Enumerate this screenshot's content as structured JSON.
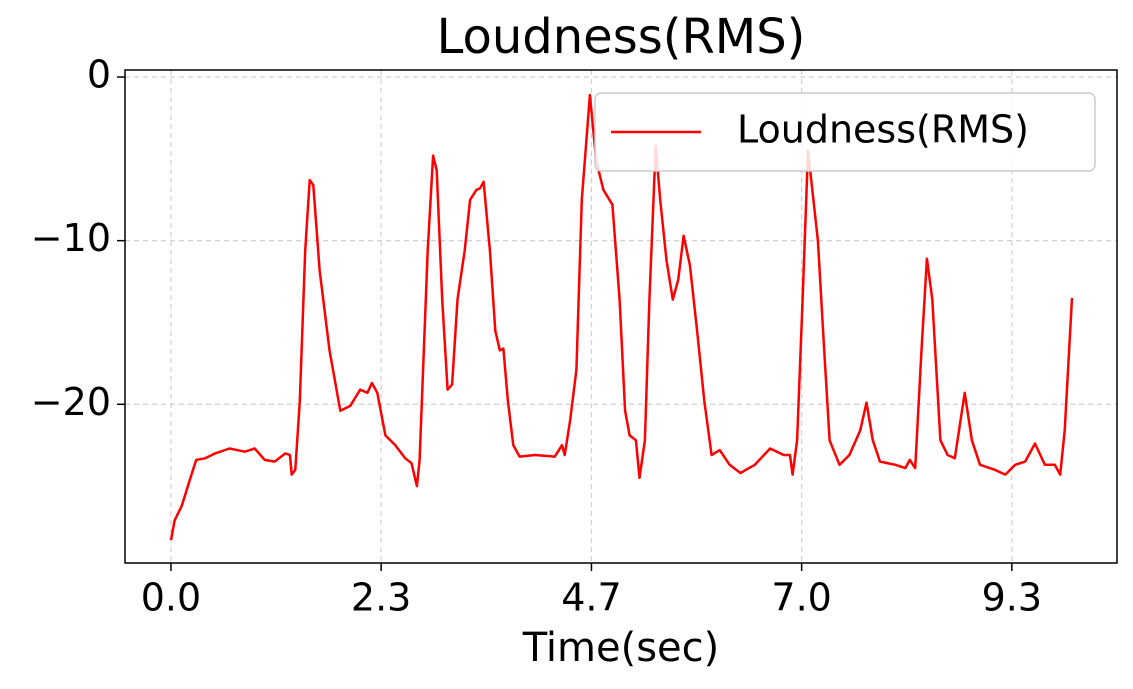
{
  "chart_data": {
    "type": "line",
    "title": "Loudness(RMS)",
    "xlabel": "Time(sec)",
    "x": [
      0,
      0.04,
      0.12,
      0.21,
      0.28,
      0.38,
      0.49,
      0.65,
      0.82,
      0.93,
      1.04,
      1.15,
      1.27,
      1.32,
      1.34,
      1.38,
      1.43,
      1.49,
      1.54,
      1.58,
      1.65,
      1.76,
      1.88,
      1.99,
      2.1,
      2.18,
      2.23,
      2.29,
      2.38,
      2.49,
      2.6,
      2.67,
      2.73,
      2.76,
      2.85,
      2.91,
      2.95,
      3.01,
      3.07,
      3.12,
      3.18,
      3.26,
      3.32,
      3.39,
      3.43,
      3.47,
      3.54,
      3.6,
      3.65,
      3.69,
      3.74,
      3.8,
      3.87,
      4.04,
      4.26,
      4.34,
      4.37,
      4.43,
      4.5,
      4.56,
      4.65,
      4.72,
      4.8,
      4.9,
      4.98,
      5.04,
      5.09,
      5.16,
      5.2,
      5.26,
      5.31,
      5.38,
      5.43,
      5.5,
      5.57,
      5.63,
      5.69,
      5.76,
      5.84,
      5.92,
      6.0,
      6.09,
      6.2,
      6.32,
      6.48,
      6.65,
      6.8,
      6.87,
      6.9,
      6.95,
      7.01,
      7.07,
      7.13,
      7.18,
      7.25,
      7.31,
      7.42,
      7.53,
      7.65,
      7.72,
      7.79,
      7.87,
      8.04,
      8.15,
      8.2,
      8.26,
      8.33,
      8.39,
      8.45,
      8.54,
      8.62,
      8.7,
      8.81,
      8.89,
      8.98,
      9.14,
      9.26,
      9.37,
      9.48,
      9.59,
      9.7,
      9.81,
      9.87,
      9.92,
      10.0
    ],
    "series": [
      {
        "name": "Loudness(RMS)",
        "color": "#ff0000",
        "values": [
          -28.3,
          -27.1,
          -26.2,
          -24.6,
          -23.4,
          -23.3,
          -23.0,
          -22.7,
          -22.9,
          -22.7,
          -23.4,
          -23.5,
          -23.0,
          -23.1,
          -24.3,
          -24.0,
          -19.8,
          -10.6,
          -6.3,
          -6.6,
          -11.8,
          -16.7,
          -20.4,
          -20.1,
          -19.1,
          -19.3,
          -18.7,
          -19.3,
          -21.9,
          -22.5,
          -23.3,
          -23.6,
          -25.0,
          -23.4,
          -10.6,
          -4.8,
          -5.7,
          -13.6,
          -19.1,
          -18.8,
          -13.6,
          -10.6,
          -7.5,
          -6.9,
          -6.8,
          -6.4,
          -10.6,
          -15.5,
          -16.7,
          -16.6,
          -19.8,
          -22.5,
          -23.2,
          -23.1,
          -23.2,
          -22.5,
          -23.1,
          -21.0,
          -17.9,
          -7.5,
          -1.1,
          -5.1,
          -6.9,
          -7.8,
          -13.6,
          -20.4,
          -21.9,
          -22.2,
          -24.5,
          -22.2,
          -13.6,
          -4.2,
          -7.5,
          -11.2,
          -13.6,
          -12.4,
          -9.7,
          -11.5,
          -15.5,
          -19.8,
          -23.1,
          -22.8,
          -23.7,
          -24.2,
          -23.7,
          -22.7,
          -23.1,
          -23.1,
          -24.3,
          -22.2,
          -13.6,
          -4.5,
          -7.5,
          -10.0,
          -16.7,
          -22.2,
          -23.7,
          -23.1,
          -21.6,
          -19.9,
          -22.2,
          -23.5,
          -23.7,
          -23.9,
          -23.4,
          -23.9,
          -16.7,
          -11.1,
          -13.6,
          -22.2,
          -23.1,
          -23.3,
          -19.3,
          -22.2,
          -23.7,
          -24.0,
          -24.3,
          -23.7,
          -23.5,
          -22.4,
          -23.7,
          -23.7,
          -24.3,
          -21.6,
          -13.5
        ]
      }
    ],
    "xlim": [
      -0.51,
      10.5
    ],
    "xticks": [
      {
        "value": 0,
        "label": "0.0"
      },
      {
        "value": 2.333,
        "label": "2.3"
      },
      {
        "value": 4.667,
        "label": "4.7"
      },
      {
        "value": 7.0,
        "label": "7.0"
      },
      {
        "value": 9.333,
        "label": "9.3"
      }
    ],
    "ylim": [
      -29.7,
      0.43
    ],
    "yticks": [
      0,
      {
        "value": -10,
        "label": "−10"
      },
      {
        "value": -20,
        "label": "−20"
      }
    ],
    "grid": true,
    "legend": "upper right"
  }
}
